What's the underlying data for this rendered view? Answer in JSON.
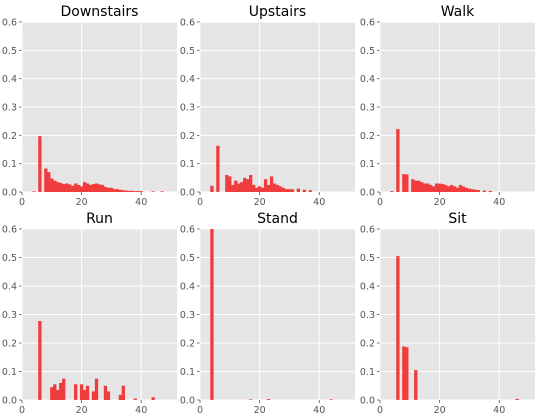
{
  "chart_data": [
    {
      "type": "bar",
      "title": "Downstairs",
      "xlim": [
        0,
        52
      ],
      "ylim": [
        0,
        0.6
      ],
      "xticks": [
        0,
        20,
        40
      ],
      "yticks": [
        0.0,
        0.1,
        0.2,
        0.3,
        0.4,
        0.5,
        0.6
      ],
      "x": [
        4,
        6,
        8,
        9,
        10,
        11,
        12,
        13,
        14,
        15,
        16,
        17,
        18,
        19,
        20,
        21,
        22,
        23,
        24,
        25,
        26,
        27,
        28,
        29,
        30,
        31,
        32,
        33,
        34,
        35,
        36,
        37,
        38,
        39,
        40,
        44,
        47
      ],
      "values": [
        0.002,
        0.197,
        0.083,
        0.07,
        0.048,
        0.04,
        0.035,
        0.032,
        0.028,
        0.03,
        0.027,
        0.022,
        0.03,
        0.025,
        0.02,
        0.035,
        0.03,
        0.025,
        0.028,
        0.03,
        0.027,
        0.025,
        0.018,
        0.015,
        0.015,
        0.01,
        0.01,
        0.008,
        0.006,
        0.005,
        0.004,
        0.004,
        0.003,
        0.003,
        0.003,
        0.002,
        0.002
      ]
    },
    {
      "type": "bar",
      "title": "Upstairs",
      "xlim": [
        0,
        52
      ],
      "ylim": [
        0,
        0.6
      ],
      "xticks": [
        0,
        20,
        40
      ],
      "yticks": [
        0.0,
        0.1,
        0.2,
        0.3,
        0.4,
        0.5,
        0.6
      ],
      "x": [
        4,
        6,
        9,
        10,
        11,
        12,
        13,
        14,
        15,
        16,
        17,
        18,
        19,
        20,
        21,
        22,
        23,
        24,
        25,
        26,
        27,
        28,
        29,
        30,
        31,
        33,
        35,
        37
      ],
      "values": [
        0.022,
        0.163,
        0.06,
        0.055,
        0.025,
        0.04,
        0.03,
        0.035,
        0.05,
        0.045,
        0.06,
        0.025,
        0.015,
        0.02,
        0.015,
        0.045,
        0.025,
        0.055,
        0.03,
        0.025,
        0.02,
        0.015,
        0.01,
        0.01,
        0.01,
        0.012,
        0.008,
        0.006
      ]
    },
    {
      "type": "bar",
      "title": "Walk",
      "xlim": [
        0,
        52
      ],
      "ylim": [
        0,
        0.6
      ],
      "xticks": [
        0,
        20,
        40
      ],
      "yticks": [
        0.0,
        0.1,
        0.2,
        0.3,
        0.4,
        0.5,
        0.6
      ],
      "x": [
        4,
        6,
        8,
        9,
        11,
        12,
        13,
        14,
        15,
        16,
        17,
        18,
        19,
        20,
        21,
        22,
        23,
        24,
        25,
        26,
        27,
        28,
        29,
        30,
        31,
        32,
        33,
        35,
        37
      ],
      "values": [
        0.003,
        0.222,
        0.063,
        0.062,
        0.045,
        0.04,
        0.04,
        0.035,
        0.03,
        0.03,
        0.025,
        0.02,
        0.03,
        0.03,
        0.028,
        0.025,
        0.02,
        0.025,
        0.02,
        0.015,
        0.025,
        0.02,
        0.015,
        0.012,
        0.01,
        0.008,
        0.007,
        0.005,
        0.004
      ]
    },
    {
      "type": "bar",
      "title": "Run",
      "xlim": [
        0,
        52
      ],
      "ylim": [
        0,
        0.6
      ],
      "xticks": [
        0,
        20,
        40
      ],
      "yticks": [
        0.0,
        0.1,
        0.2,
        0.3,
        0.4,
        0.5,
        0.6
      ],
      "x": [
        6,
        10,
        11,
        12,
        13,
        14,
        18,
        20,
        21,
        22,
        24,
        25,
        28,
        29,
        33,
        34,
        38,
        44
      ],
      "values": [
        0.277,
        0.045,
        0.055,
        0.035,
        0.06,
        0.075,
        0.055,
        0.055,
        0.035,
        0.05,
        0.03,
        0.075,
        0.05,
        0.03,
        0.018,
        0.05,
        0.005,
        0.01
      ]
    },
    {
      "type": "bar",
      "title": "Stand",
      "xlim": [
        0,
        52
      ],
      "ylim": [
        0,
        0.6
      ],
      "xticks": [
        0,
        20,
        40
      ],
      "yticks": [
        0.0,
        0.1,
        0.2,
        0.3,
        0.4,
        0.5,
        0.6
      ],
      "x": [
        4,
        17,
        23,
        44
      ],
      "values": [
        0.6,
        0.002,
        0.003,
        0.002
      ]
    },
    {
      "type": "bar",
      "title": "Sit",
      "xlim": [
        0,
        52
      ],
      "ylim": [
        0,
        0.6
      ],
      "xticks": [
        0,
        20,
        40
      ],
      "yticks": [
        0.0,
        0.1,
        0.2,
        0.3,
        0.4,
        0.5,
        0.6
      ],
      "x": [
        6,
        8,
        9,
        12,
        46
      ],
      "values": [
        0.505,
        0.188,
        0.185,
        0.105,
        0.004
      ]
    }
  ],
  "colors": {
    "bar": "#f03c3c",
    "panel": "#e5e5e5",
    "grid": "#ffffff"
  }
}
